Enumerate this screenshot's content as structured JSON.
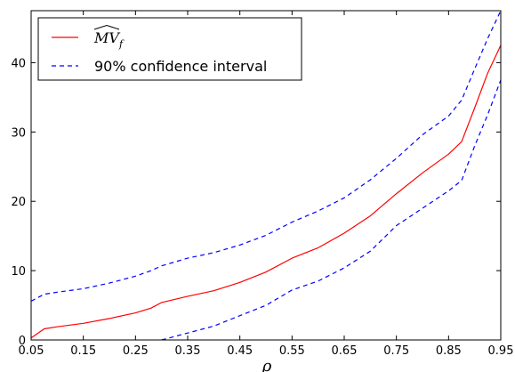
{
  "chart_data": {
    "type": "line",
    "title": "",
    "xlabel": "ρ",
    "ylabel": "",
    "xlim": [
      0.05,
      0.95
    ],
    "ylim": [
      0,
      47.5
    ],
    "grid": false,
    "legend_position": "top-left",
    "x_ticks": [
      "0.05",
      "0.15",
      "0.25",
      "0.35",
      "0.45",
      "0.55",
      "0.65",
      "0.75",
      "0.85",
      "0.95"
    ],
    "y_ticks": [
      "0",
      "10",
      "20",
      "30",
      "40"
    ],
    "colors": {
      "estimate": "#ff0000",
      "interval": "#0000ff"
    },
    "x": [
      0.05,
      0.075,
      0.1,
      0.15,
      0.2,
      0.25,
      0.28,
      0.3,
      0.35,
      0.4,
      0.45,
      0.5,
      0.55,
      0.6,
      0.65,
      0.7,
      0.75,
      0.8,
      0.85,
      0.875,
      0.9,
      0.925,
      0.95
    ],
    "series": [
      {
        "name": "MV_f",
        "legend_label": "MV",
        "legend_subscript": "f",
        "style": "solid",
        "values": [
          0.3,
          1.6,
          1.9,
          2.4,
          3.1,
          3.9,
          4.6,
          5.4,
          6.3,
          7.1,
          8.3,
          9.8,
          11.8,
          13.3,
          15.4,
          17.9,
          21.1,
          24.1,
          26.8,
          28.6,
          33.5,
          38.5,
          42.5
        ]
      },
      {
        "name": "upper",
        "legend_label": "90% confidence interval",
        "style": "dashed",
        "values": [
          5.6,
          6.6,
          6.9,
          7.4,
          8.2,
          9.2,
          10.0,
          10.7,
          11.8,
          12.6,
          13.7,
          15.1,
          17.0,
          18.6,
          20.5,
          23.1,
          26.2,
          29.6,
          32.3,
          34.6,
          39.1,
          43.5,
          47.5
        ]
      },
      {
        "name": "lower",
        "legend_label": "",
        "style": "dashed",
        "values": [
          null,
          null,
          null,
          null,
          null,
          null,
          null,
          0.0,
          1.0,
          2.0,
          3.5,
          5.0,
          7.2,
          8.5,
          10.4,
          12.8,
          16.5,
          19.0,
          21.5,
          23.0,
          28.0,
          32.5,
          37.5
        ]
      }
    ]
  }
}
